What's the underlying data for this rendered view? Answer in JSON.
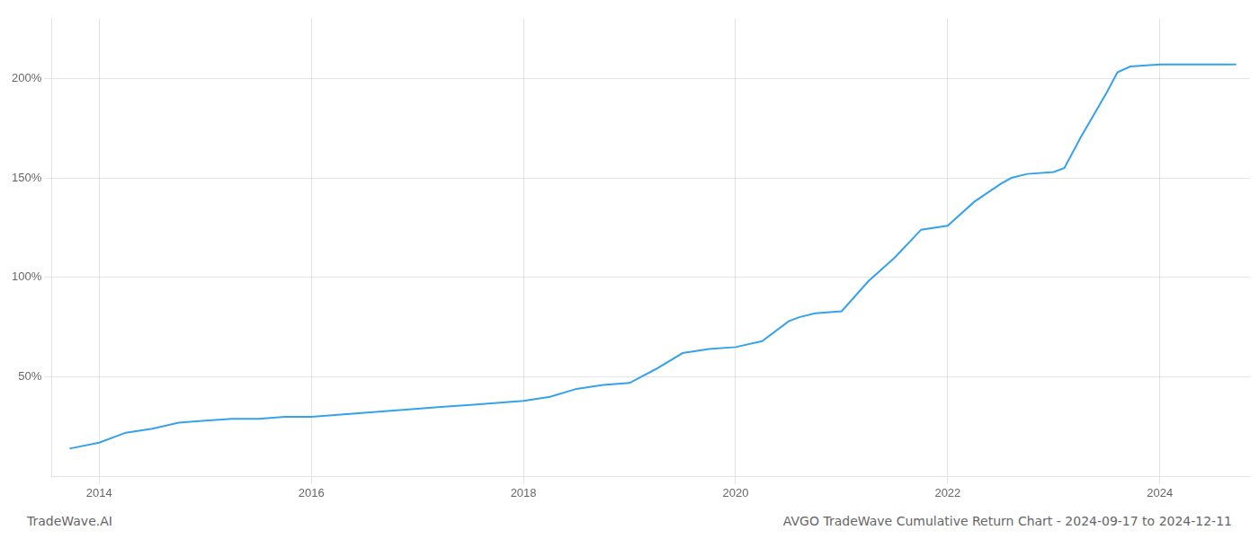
{
  "chart_data": {
    "type": "line",
    "title": "AVGO TradeWave Cumulative Return Chart - 2024-09-17 to 2024-12-11",
    "annotations": [
      "TradeWave.AI"
    ],
    "x": [
      2013.72,
      2014.0,
      2014.25,
      2014.5,
      2014.75,
      2015.0,
      2015.25,
      2015.5,
      2015.75,
      2016.0,
      2016.25,
      2016.5,
      2016.75,
      2017.0,
      2017.25,
      2017.5,
      2017.75,
      2018.0,
      2018.25,
      2018.5,
      2018.75,
      2019.0,
      2019.25,
      2019.5,
      2019.75,
      2020.0,
      2020.25,
      2020.5,
      2020.6,
      2020.75,
      2021.0,
      2021.25,
      2021.5,
      2021.75,
      2022.0,
      2022.25,
      2022.5,
      2022.6,
      2022.75,
      2023.0,
      2023.1,
      2023.25,
      2023.5,
      2023.6,
      2023.72,
      2024.0,
      2024.72
    ],
    "values": [
      14,
      17,
      22,
      24,
      27,
      28,
      29,
      29,
      30,
      30,
      31,
      32,
      33,
      34,
      35,
      36,
      37,
      38,
      40,
      44,
      46,
      47,
      54,
      62,
      64,
      65,
      68,
      78,
      80,
      82,
      83,
      98,
      110,
      124,
      126,
      138,
      147,
      150,
      152,
      153,
      155,
      170,
      193,
      203,
      206,
      207,
      207
    ],
    "xlim": [
      2013.55,
      2024.85
    ],
    "xticks": [
      2014,
      2016,
      2018,
      2020,
      2022,
      2024
    ],
    "ylim": [
      0,
      230
    ],
    "yticks": [
      {
        "value": 50,
        "label": "50%"
      },
      {
        "value": 100,
        "label": "100%"
      },
      {
        "value": 150,
        "label": "150%"
      },
      {
        "value": 200,
        "label": "200%"
      }
    ],
    "grid": true
  }
}
